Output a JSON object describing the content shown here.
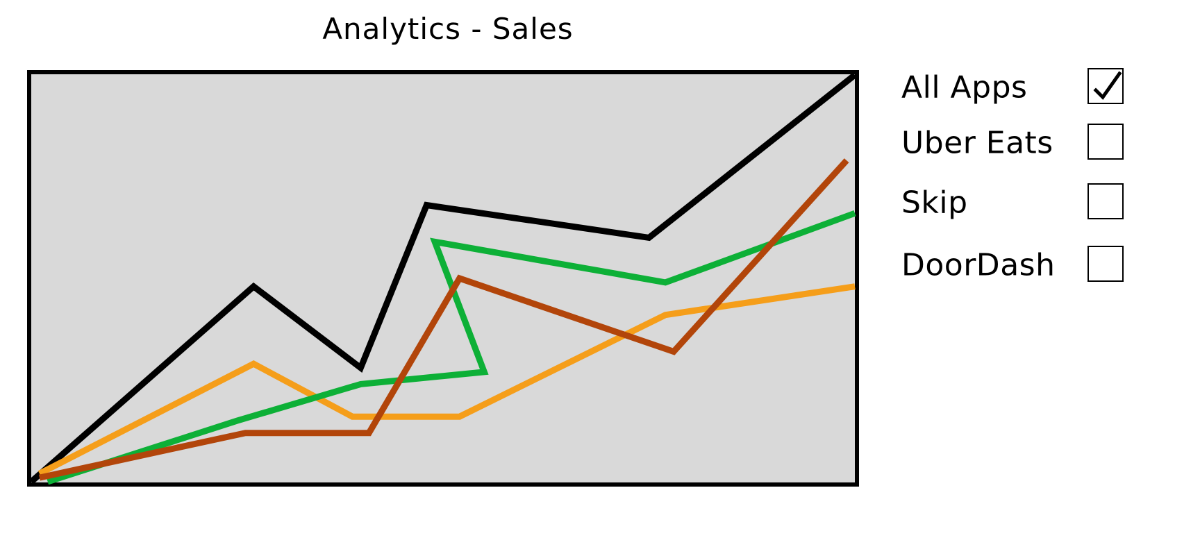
{
  "page": {
    "title": "Analytics - Sales"
  },
  "legend": [
    {
      "label": "All Apps",
      "checked": true
    },
    {
      "label": "Uber Eats",
      "checked": false
    },
    {
      "label": "Skip",
      "checked": false
    },
    {
      "label": "DoorDash",
      "checked": false
    }
  ],
  "chart_data": {
    "type": "line",
    "title": "Analytics - Sales",
    "xlabel": "",
    "ylabel": "",
    "grid": false,
    "xlim": [
      0,
      100
    ],
    "ylim": [
      0,
      100
    ],
    "series": [
      {
        "name": "All Apps",
        "color": "#000000",
        "x": [
          0,
          27,
          40,
          48,
          75,
          100
        ],
        "y": [
          0,
          48,
          28,
          68,
          60,
          100
        ]
      },
      {
        "name": "Uber Eats",
        "color": "#B2450A",
        "x": [
          1,
          26,
          41,
          52,
          78,
          99
        ],
        "y": [
          1,
          12,
          12,
          50,
          32,
          79
        ]
      },
      {
        "name": "Skip",
        "color": "#0DB037",
        "x": [
          2,
          25,
          40,
          55,
          49,
          77,
          100
        ],
        "y": [
          0,
          15,
          24,
          27,
          59,
          49,
          66
        ]
      },
      {
        "name": "DoorDash",
        "color": "#F59E1A",
        "x": [
          1,
          27,
          39,
          52,
          77,
          100
        ],
        "y": [
          2,
          29,
          16,
          16,
          41,
          48
        ]
      }
    ]
  }
}
